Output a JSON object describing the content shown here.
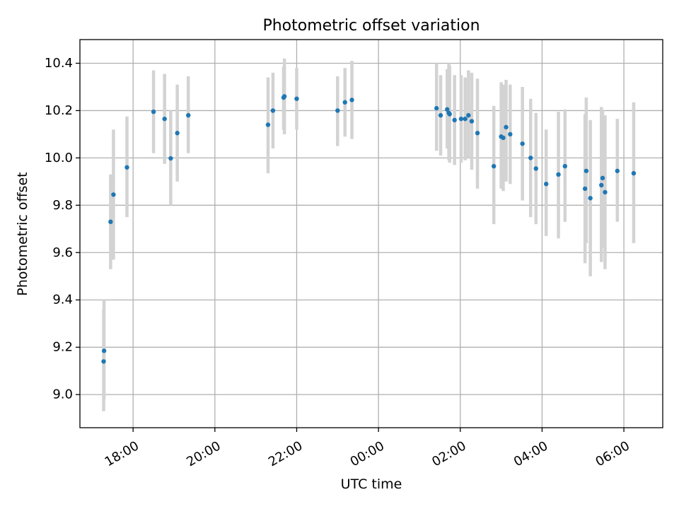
{
  "chart_data": {
    "type": "scatter",
    "title": "Photometric offset variation",
    "xlabel": "UTC time",
    "ylabel": "Photometric offset",
    "grid": true,
    "x_unit": "hours relative to 00:00 UTC (negative = previous day)",
    "xlim": [
      -7.3,
      6.95
    ],
    "ylim": [
      8.86,
      10.5
    ],
    "x_ticks": [
      {
        "value": -6,
        "label": "18:00"
      },
      {
        "value": -4,
        "label": "20:00"
      },
      {
        "value": -2,
        "label": "22:00"
      },
      {
        "value": 0,
        "label": "00:00"
      },
      {
        "value": 2,
        "label": "02:00"
      },
      {
        "value": 4,
        "label": "04:00"
      },
      {
        "value": 6,
        "label": "06:00"
      }
    ],
    "y_ticks": [
      {
        "value": 9.0,
        "label": "9.0"
      },
      {
        "value": 9.2,
        "label": "9.2"
      },
      {
        "value": 9.4,
        "label": "9.4"
      },
      {
        "value": 9.6,
        "label": "9.6"
      },
      {
        "value": 9.8,
        "label": "9.8"
      },
      {
        "value": 10.0,
        "label": "10.0"
      },
      {
        "value": 10.2,
        "label": "10.2"
      },
      {
        "value": 10.4,
        "label": "10.4"
      }
    ],
    "colors": {
      "marker": "#1f77b4",
      "errorbar": "#d3d3d3",
      "grid": "#b0b0b0"
    },
    "points": [
      {
        "x": -6.72,
        "y": 9.14,
        "lo": 8.93,
        "hi": 9.36
      },
      {
        "x": -6.71,
        "y": 9.185,
        "lo": 8.98,
        "hi": 9.4
      },
      {
        "x": -6.55,
        "y": 9.73,
        "lo": 9.53,
        "hi": 9.93
      },
      {
        "x": -6.48,
        "y": 9.845,
        "lo": 9.57,
        "hi": 10.12
      },
      {
        "x": -6.15,
        "y": 9.96,
        "lo": 9.75,
        "hi": 10.175
      },
      {
        "x": -5.5,
        "y": 10.195,
        "lo": 10.02,
        "hi": 10.37
      },
      {
        "x": -5.23,
        "y": 10.165,
        "lo": 9.975,
        "hi": 10.355
      },
      {
        "x": -5.08,
        "y": 9.998,
        "lo": 9.8,
        "hi": 10.2
      },
      {
        "x": -4.92,
        "y": 10.105,
        "lo": 9.9,
        "hi": 10.31
      },
      {
        "x": -4.65,
        "y": 10.18,
        "lo": 10.02,
        "hi": 10.345
      },
      {
        "x": -2.7,
        "y": 10.14,
        "lo": 9.935,
        "hi": 10.34
      },
      {
        "x": -2.58,
        "y": 10.2,
        "lo": 10.04,
        "hi": 10.36
      },
      {
        "x": -2.32,
        "y": 10.255,
        "lo": 10.12,
        "hi": 10.385
      },
      {
        "x": -2.3,
        "y": 10.26,
        "lo": 10.1,
        "hi": 10.42
      },
      {
        "x": -2.0,
        "y": 10.25,
        "lo": 10.12,
        "hi": 10.38
      },
      {
        "x": -1.0,
        "y": 10.2,
        "lo": 10.05,
        "hi": 10.345
      },
      {
        "x": -0.82,
        "y": 10.235,
        "lo": 10.09,
        "hi": 10.38
      },
      {
        "x": -0.65,
        "y": 10.245,
        "lo": 10.08,
        "hi": 10.41
      },
      {
        "x": 1.42,
        "y": 10.21,
        "lo": 10.03,
        "hi": 10.4
      },
      {
        "x": 1.52,
        "y": 10.18,
        "lo": 10.01,
        "hi": 10.35
      },
      {
        "x": 1.68,
        "y": 10.205,
        "lo": 10.04,
        "hi": 10.375
      },
      {
        "x": 1.72,
        "y": 10.19,
        "lo": 9.99,
        "hi": 10.4
      },
      {
        "x": 1.74,
        "y": 10.185,
        "lo": 9.98,
        "hi": 10.39
      },
      {
        "x": 1.86,
        "y": 10.16,
        "lo": 9.97,
        "hi": 10.35
      },
      {
        "x": 2.02,
        "y": 10.165,
        "lo": 9.98,
        "hi": 10.35
      },
      {
        "x": 2.12,
        "y": 10.165,
        "lo": 9.99,
        "hi": 10.34
      },
      {
        "x": 2.2,
        "y": 10.18,
        "lo": 10.0,
        "hi": 10.37
      },
      {
        "x": 2.28,
        "y": 10.155,
        "lo": 9.95,
        "hi": 10.36
      },
      {
        "x": 2.42,
        "y": 10.105,
        "lo": 9.87,
        "hi": 10.335
      },
      {
        "x": 2.82,
        "y": 9.965,
        "lo": 9.72,
        "hi": 10.22
      },
      {
        "x": 3.0,
        "y": 10.09,
        "lo": 9.87,
        "hi": 10.32
      },
      {
        "x": 3.05,
        "y": 10.085,
        "lo": 9.86,
        "hi": 10.31
      },
      {
        "x": 3.12,
        "y": 10.13,
        "lo": 9.9,
        "hi": 10.33
      },
      {
        "x": 3.22,
        "y": 10.1,
        "lo": 9.89,
        "hi": 10.31
      },
      {
        "x": 3.52,
        "y": 10.06,
        "lo": 9.82,
        "hi": 10.3
      },
      {
        "x": 3.72,
        "y": 10.0,
        "lo": 9.75,
        "hi": 10.25
      },
      {
        "x": 3.85,
        "y": 9.955,
        "lo": 9.72,
        "hi": 10.19
      },
      {
        "x": 4.1,
        "y": 9.89,
        "lo": 9.67,
        "hi": 10.12
      },
      {
        "x": 4.4,
        "y": 9.93,
        "lo": 9.66,
        "hi": 10.195
      },
      {
        "x": 4.56,
        "y": 9.965,
        "lo": 9.73,
        "hi": 10.205
      },
      {
        "x": 5.05,
        "y": 9.87,
        "lo": 9.555,
        "hi": 10.185
      },
      {
        "x": 5.08,
        "y": 9.945,
        "lo": 9.64,
        "hi": 10.255
      },
      {
        "x": 5.18,
        "y": 9.83,
        "lo": 9.5,
        "hi": 10.16
      },
      {
        "x": 5.45,
        "y": 9.885,
        "lo": 9.56,
        "hi": 10.215
      },
      {
        "x": 5.48,
        "y": 9.915,
        "lo": 9.62,
        "hi": 10.2
      },
      {
        "x": 5.54,
        "y": 9.855,
        "lo": 9.53,
        "hi": 10.18
      },
      {
        "x": 5.84,
        "y": 9.945,
        "lo": 9.73,
        "hi": 10.165
      },
      {
        "x": 6.24,
        "y": 9.935,
        "lo": 9.64,
        "hi": 10.235
      }
    ]
  }
}
